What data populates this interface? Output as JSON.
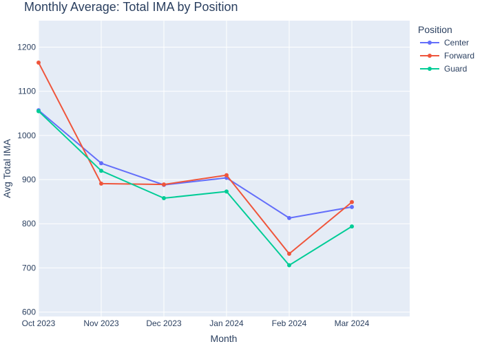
{
  "chart_data": {
    "type": "line",
    "title": "Monthly Average: Total IMA by Position",
    "xlabel": "Month",
    "ylabel": "Avg Total IMA",
    "categories": [
      "Oct 2023",
      "Nov 2023",
      "Dec 2023",
      "Jan 2024",
      "Feb 2024",
      "Mar 2024"
    ],
    "ylim": [
      590,
      1260
    ],
    "yticks": [
      600,
      700,
      800,
      900,
      1000,
      1100,
      1200
    ],
    "grid": true,
    "legend_title": "Position",
    "legend_position": "top-right",
    "series": [
      {
        "name": "Center",
        "color": "#636efa",
        "values": [
          1057,
          937,
          888,
          904,
          813,
          838
        ]
      },
      {
        "name": "Forward",
        "color": "#ef553b",
        "values": [
          1165,
          891,
          889,
          910,
          732,
          849
        ]
      },
      {
        "name": "Guard",
        "color": "#00cc96",
        "values": [
          1055,
          920,
          858,
          873,
          706,
          794
        ]
      }
    ],
    "plot_background": "#e5ecf6"
  }
}
